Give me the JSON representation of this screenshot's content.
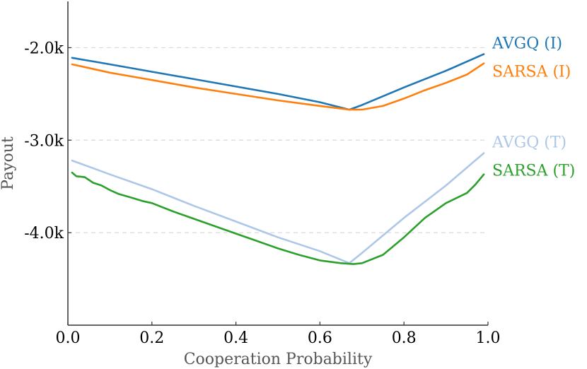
{
  "chart_data": {
    "type": "line",
    "title": "",
    "xlabel": "Cooperation Probability",
    "ylabel": "Payout",
    "xlim": [
      0.0,
      1.0
    ],
    "ylim": [
      -5.0,
      -1.5
    ],
    "x_ticks": [
      0.0,
      0.2,
      0.4,
      0.6,
      0.8,
      1.0
    ],
    "x_tick_labels": [
      "0.0",
      "0.2",
      "0.4",
      "0.6",
      "0.8",
      "1.0"
    ],
    "y_ticks": [
      -2.0,
      -3.0,
      -4.0
    ],
    "y_tick_labels": [
      "-2.0k",
      "-3.0k",
      "-4.0k"
    ],
    "y_unit": "thousands",
    "grid": "horizontal dashed at y ticks",
    "legend_placement": "right, inline labels",
    "series": [
      {
        "name": "AVGQ (I)",
        "color": "#1f77b4",
        "x": [
          0.01,
          0.1,
          0.2,
          0.3,
          0.4,
          0.5,
          0.6,
          0.67,
          0.7,
          0.8,
          0.9,
          0.99
        ],
        "y": [
          -2.11,
          -2.18,
          -2.26,
          -2.34,
          -2.42,
          -2.5,
          -2.59,
          -2.67,
          -2.62,
          -2.43,
          -2.25,
          -2.07
        ]
      },
      {
        "name": "SARSA (I)",
        "color": "#ff7f0e",
        "x": [
          0.01,
          0.05,
          0.1,
          0.15,
          0.2,
          0.3,
          0.4,
          0.5,
          0.6,
          0.67,
          0.7,
          0.75,
          0.8,
          0.85,
          0.9,
          0.95,
          0.99
        ],
        "y": [
          -2.18,
          -2.22,
          -2.27,
          -2.31,
          -2.35,
          -2.43,
          -2.5,
          -2.57,
          -2.63,
          -2.67,
          -2.67,
          -2.63,
          -2.55,
          -2.46,
          -2.38,
          -2.29,
          -2.17
        ]
      },
      {
        "name": "AVGQ (T)",
        "color": "#aec7e8",
        "x": [
          0.01,
          0.1,
          0.2,
          0.3,
          0.4,
          0.5,
          0.6,
          0.67,
          0.7,
          0.8,
          0.9,
          0.99
        ],
        "y": [
          -3.22,
          -3.37,
          -3.53,
          -3.71,
          -3.88,
          -4.05,
          -4.2,
          -4.33,
          -4.22,
          -3.84,
          -3.49,
          -3.14
        ]
      },
      {
        "name": "SARSA (T)",
        "color": "#2ca02c",
        "x": [
          0.01,
          0.02,
          0.04,
          0.06,
          0.08,
          0.1,
          0.12,
          0.15,
          0.18,
          0.2,
          0.25,
          0.3,
          0.35,
          0.4,
          0.45,
          0.5,
          0.55,
          0.6,
          0.65,
          0.68,
          0.7,
          0.75,
          0.8,
          0.85,
          0.9,
          0.95,
          0.97,
          0.99
        ],
        "y": [
          -3.35,
          -3.39,
          -3.4,
          -3.46,
          -3.49,
          -3.54,
          -3.58,
          -3.62,
          -3.66,
          -3.68,
          -3.77,
          -3.85,
          -3.93,
          -4.01,
          -4.09,
          -4.17,
          -4.24,
          -4.3,
          -4.33,
          -4.34,
          -4.33,
          -4.24,
          -4.05,
          -3.84,
          -3.68,
          -3.57,
          -3.48,
          -3.37
        ]
      }
    ]
  }
}
